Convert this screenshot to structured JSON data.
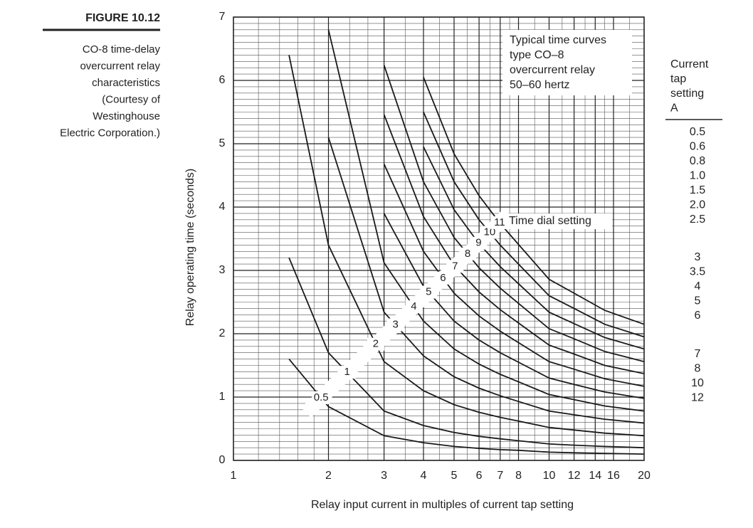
{
  "figure": {
    "label": "FIGURE 10.12",
    "caption_lines": [
      "CO-8 time-delay",
      "overcurrent relay",
      "characteristics",
      "(Courtesy of",
      "Westinghouse",
      "Electric Corporation.)"
    ]
  },
  "chart_data": {
    "type": "line",
    "xlabel": "Relay input current in multiples of current tap setting",
    "ylabel": "Relay operating time (seconds)",
    "annotation_lines": [
      "Typical time curves",
      "type CO–8",
      "overcurrent relay",
      "50–60 hertz"
    ],
    "curve_label_title": "Time dial setting",
    "xscale": "log",
    "xlim": [
      1,
      20
    ],
    "ylim": [
      0,
      7
    ],
    "xticks": [
      1,
      2,
      3,
      4,
      5,
      6,
      7,
      8,
      10,
      12,
      14,
      16,
      20
    ],
    "yticks": [
      0,
      1,
      2,
      3,
      4,
      5,
      6,
      7
    ],
    "grid": true,
    "color": "#1a1a1a",
    "x": [
      1.5,
      2,
      3,
      4,
      5,
      6,
      7,
      8,
      10,
      12,
      15,
      20
    ],
    "series": [
      {
        "name": "0.5",
        "values": [
          1.6,
          0.85,
          0.39,
          0.28,
          0.22,
          0.19,
          0.17,
          0.16,
          0.13,
          0.12,
          0.11,
          0.1
        ]
      },
      {
        "name": "1",
        "values": [
          3.2,
          1.7,
          0.78,
          0.55,
          0.44,
          0.38,
          0.34,
          0.31,
          0.26,
          0.24,
          0.22,
          0.2
        ]
      },
      {
        "name": "2",
        "values": [
          6.4,
          3.4,
          1.56,
          1.1,
          0.88,
          0.76,
          0.68,
          0.62,
          0.52,
          0.48,
          0.43,
          0.39
        ]
      },
      {
        "name": "3",
        "values": [
          null,
          5.1,
          2.34,
          1.65,
          1.32,
          1.14,
          1.02,
          0.93,
          0.78,
          0.72,
          0.65,
          0.59
        ]
      },
      {
        "name": "4",
        "values": [
          null,
          6.8,
          3.12,
          2.2,
          1.76,
          1.52,
          1.36,
          1.24,
          1.04,
          0.96,
          0.86,
          0.78
        ]
      },
      {
        "name": "5",
        "values": [
          null,
          null,
          3.9,
          2.75,
          2.2,
          1.9,
          1.7,
          1.55,
          1.3,
          1.2,
          1.08,
          0.98
        ]
      },
      {
        "name": "6",
        "values": [
          null,
          null,
          4.68,
          3.3,
          2.64,
          2.28,
          2.04,
          1.86,
          1.56,
          1.44,
          1.29,
          1.17
        ]
      },
      {
        "name": "7",
        "values": [
          null,
          null,
          5.46,
          3.85,
          3.08,
          2.66,
          2.38,
          2.17,
          1.82,
          1.68,
          1.5,
          1.37
        ]
      },
      {
        "name": "8",
        "values": [
          null,
          null,
          6.24,
          4.4,
          3.52,
          3.04,
          2.72,
          2.48,
          2.08,
          1.92,
          1.72,
          1.56
        ]
      },
      {
        "name": "9",
        "values": [
          null,
          null,
          null,
          4.95,
          3.96,
          3.42,
          3.06,
          2.79,
          2.34,
          2.16,
          1.94,
          1.76
        ]
      },
      {
        "name": "10",
        "values": [
          null,
          null,
          null,
          5.5,
          4.4,
          3.8,
          3.4,
          3.1,
          2.6,
          2.4,
          2.15,
          1.95
        ]
      },
      {
        "name": "11",
        "values": [
          null,
          null,
          null,
          6.05,
          4.84,
          4.18,
          3.74,
          3.41,
          2.86,
          2.64,
          2.37,
          2.15
        ]
      }
    ]
  },
  "tap_table": {
    "header_lines": [
      "Current",
      "tap",
      "setting",
      "A"
    ],
    "groups": [
      [
        "0.5",
        "0.6",
        "0.8",
        "1.0",
        "1.5",
        "2.0",
        "2.5"
      ],
      [
        "3",
        "3.5",
        "4",
        "5",
        "6"
      ],
      [
        "7",
        "8",
        "10",
        "12"
      ]
    ]
  }
}
